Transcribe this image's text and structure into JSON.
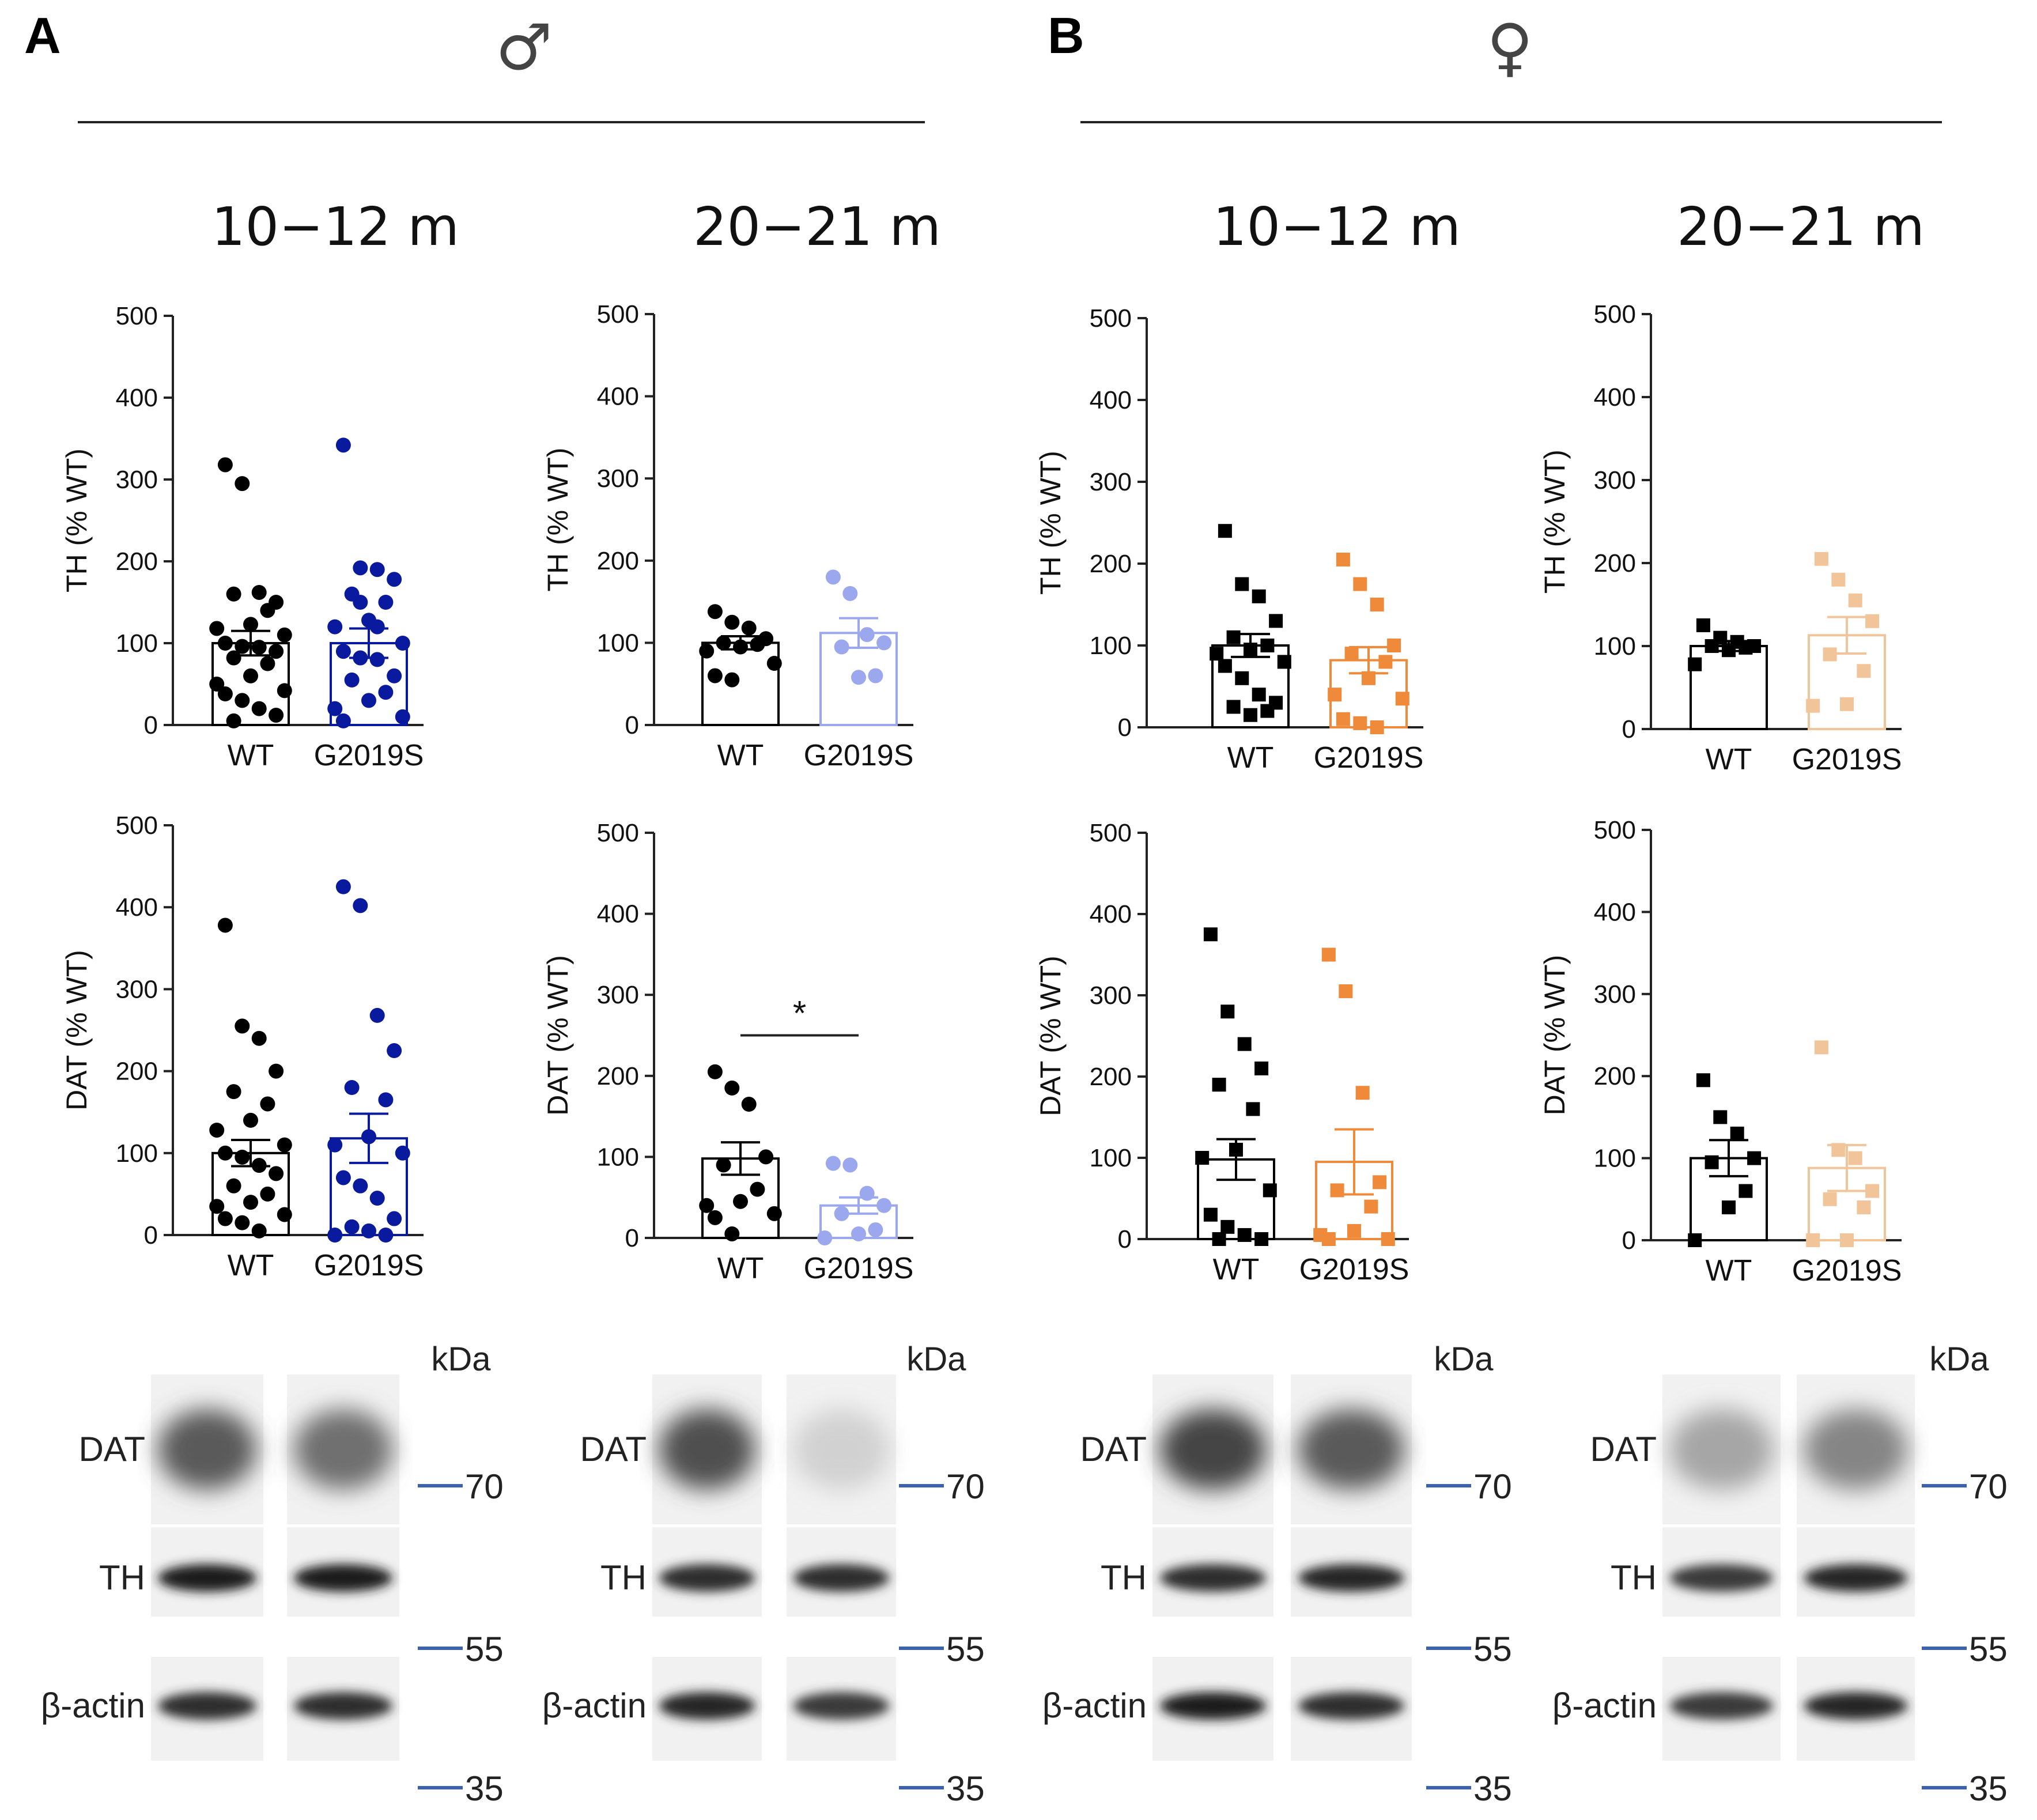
{
  "panels": [
    {
      "letter": "A",
      "sex_symbol": "♂",
      "sex": "male"
    },
    {
      "letter": "B",
      "sex_symbol": "♀",
      "sex": "female"
    }
  ],
  "colors": {
    "wt": "#000000",
    "male_10_12": "#0a1a9e",
    "male_20_21": "#9ca8ee",
    "female_10_12": "#ee8a3a",
    "female_20_21": "#f1c49a",
    "marker": "#3a62b0"
  },
  "chart_data": [
    {
      "id": "male-10-12-th",
      "type": "bar",
      "title": "10−12 m",
      "ylabel": "TH (% WT)",
      "ylim": [
        0,
        500
      ],
      "yticks": [
        0,
        100,
        200,
        300,
        400,
        500
      ],
      "categories": [
        "WT",
        "G2019S"
      ],
      "marker": "circle",
      "series": [
        {
          "name": "WT",
          "mean": 100,
          "sem": 15,
          "color_key": "wt",
          "points": [
            318,
            295,
            162,
            150,
            160,
            140,
            123,
            118,
            110,
            100,
            96,
            95,
            90,
            82,
            75,
            60,
            50,
            42,
            38,
            30,
            20,
            12,
            5
          ]
        },
        {
          "name": "G2019S",
          "mean": 100,
          "sem": 18,
          "color_key": "male_10_12",
          "points": [
            342,
            192,
            190,
            178,
            160,
            150,
            128,
            120,
            100,
            90,
            82,
            80,
            60,
            55,
            40,
            30,
            20,
            10,
            5,
            150,
            120
          ]
        }
      ]
    },
    {
      "id": "male-20-21-th",
      "type": "bar",
      "title": "20−21 m",
      "ylabel": "TH (% WT)",
      "ylim": [
        0,
        500
      ],
      "yticks": [
        0,
        100,
        200,
        300,
        400,
        500
      ],
      "categories": [
        "WT",
        "G2019S"
      ],
      "marker": "circle",
      "series": [
        {
          "name": "WT",
          "mean": 100,
          "sem": 8,
          "color_key": "wt",
          "points": [
            138,
            125,
            118,
            105,
            100,
            98,
            95,
            90,
            75,
            60,
            55
          ]
        },
        {
          "name": "G2019S",
          "mean": 112,
          "sem": 18,
          "color_key": "male_20_21",
          "points": [
            180,
            160,
            110,
            100,
            95,
            60,
            58
          ]
        }
      ]
    },
    {
      "id": "female-10-12-th",
      "type": "bar",
      "title": "10−12 m",
      "ylabel": "TH (% WT)",
      "ylim": [
        0,
        500
      ],
      "yticks": [
        0,
        100,
        200,
        300,
        400,
        500
      ],
      "categories": [
        "WT",
        "G2019S"
      ],
      "marker": "square",
      "series": [
        {
          "name": "WT",
          "mean": 100,
          "sem": 14,
          "color_key": "wt",
          "points": [
            240,
            175,
            160,
            130,
            110,
            100,
            95,
            90,
            80,
            75,
            60,
            40,
            30,
            25,
            20,
            15
          ]
        },
        {
          "name": "G2019S",
          "mean": 82,
          "sem": 16,
          "color_key": "female_10_12",
          "points": [
            205,
            175,
            150,
            100,
            90,
            80,
            60,
            40,
            35,
            10,
            5,
            0
          ]
        }
      ]
    },
    {
      "id": "female-20-21-th",
      "type": "bar",
      "title": "20−21 m",
      "ylabel": "TH (% WT)",
      "ylim": [
        0,
        500
      ],
      "yticks": [
        0,
        100,
        200,
        300,
        400,
        500
      ],
      "categories": [
        "WT",
        "G2019S"
      ],
      "marker": "square",
      "series": [
        {
          "name": "WT",
          "mean": 100,
          "sem": 6,
          "color_key": "wt",
          "points": [
            125,
            110,
            105,
            100,
            100,
            98,
            95,
            78
          ]
        },
        {
          "name": "G2019S",
          "mean": 113,
          "sem": 22,
          "color_key": "female_20_21",
          "points": [
            205,
            180,
            155,
            130,
            90,
            70,
            30,
            28
          ]
        }
      ]
    },
    {
      "id": "male-10-12-dat",
      "type": "bar",
      "ylabel": "DAT (% WT)",
      "ylim": [
        0,
        500
      ],
      "yticks": [
        0,
        100,
        200,
        300,
        400,
        500
      ],
      "categories": [
        "WT",
        "G2019S"
      ],
      "marker": "circle",
      "series": [
        {
          "name": "WT",
          "mean": 100,
          "sem": 16,
          "color_key": "wt",
          "points": [
            378,
            255,
            240,
            200,
            175,
            160,
            140,
            128,
            110,
            100,
            95,
            85,
            75,
            60,
            50,
            40,
            35,
            25,
            20,
            15,
            5
          ]
        },
        {
          "name": "G2019S",
          "mean": 118,
          "sem": 30,
          "color_key": "male_10_12",
          "points": [
            425,
            402,
            268,
            225,
            180,
            165,
            120,
            110,
            100,
            70,
            60,
            45,
            20,
            10,
            0,
            5,
            0
          ]
        }
      ]
    },
    {
      "id": "male-20-21-dat",
      "type": "bar",
      "ylabel": "DAT (% WT)",
      "ylim": [
        0,
        500
      ],
      "yticks": [
        0,
        100,
        200,
        300,
        400,
        500
      ],
      "categories": [
        "WT",
        "G2019S"
      ],
      "marker": "circle",
      "significance": "*",
      "series": [
        {
          "name": "WT",
          "mean": 98,
          "sem": 20,
          "color_key": "wt",
          "points": [
            205,
            185,
            165,
            100,
            90,
            60,
            45,
            40,
            30,
            25,
            5
          ]
        },
        {
          "name": "G2019S",
          "mean": 40,
          "sem": 10,
          "color_key": "male_20_21",
          "points": [
            92,
            90,
            55,
            40,
            30,
            10,
            5,
            0
          ]
        }
      ]
    },
    {
      "id": "female-10-12-dat",
      "type": "bar",
      "ylabel": "DAT (% WT)",
      "ylim": [
        0,
        500
      ],
      "yticks": [
        0,
        100,
        200,
        300,
        400,
        500
      ],
      "categories": [
        "WT",
        "G2019S"
      ],
      "marker": "square",
      "series": [
        {
          "name": "WT",
          "mean": 98,
          "sem": 25,
          "color_key": "wt",
          "points": [
            375,
            280,
            240,
            210,
            190,
            160,
            110,
            100,
            60,
            30,
            15,
            5,
            0,
            0
          ]
        },
        {
          "name": "G2019S",
          "mean": 95,
          "sem": 40,
          "color_key": "female_10_12",
          "points": [
            350,
            305,
            180,
            70,
            60,
            40,
            10,
            5,
            0,
            0
          ]
        }
      ]
    },
    {
      "id": "female-20-21-dat",
      "type": "bar",
      "ylabel": "DAT (% WT)",
      "ylim": [
        0,
        500
      ],
      "yticks": [
        0,
        100,
        200,
        300,
        400,
        500
      ],
      "categories": [
        "WT",
        "G2019S"
      ],
      "marker": "square",
      "series": [
        {
          "name": "WT",
          "mean": 100,
          "sem": 22,
          "color_key": "wt",
          "points": [
            195,
            150,
            130,
            100,
            95,
            60,
            40,
            0
          ]
        },
        {
          "name": "G2019S",
          "mean": 88,
          "sem": 28,
          "color_key": "female_20_21",
          "points": [
            235,
            110,
            100,
            60,
            50,
            40,
            0,
            0
          ]
        }
      ]
    }
  ],
  "blots": {
    "unit_label": "kDa",
    "rows": [
      "DAT",
      "TH",
      "β-actin"
    ],
    "markers": [
      "70",
      "55",
      "35"
    ],
    "groups": [
      {
        "id": "male-10-12",
        "dat": [
          0.65,
          0.55
        ],
        "th": [
          0.95,
          0.95
        ],
        "actin": [
          0.85,
          0.85
        ]
      },
      {
        "id": "male-20-21",
        "dat": [
          0.7,
          0.1
        ],
        "th": [
          0.85,
          0.85
        ],
        "actin": [
          0.9,
          0.8
        ]
      },
      {
        "id": "female-10-12",
        "dat": [
          0.75,
          0.65
        ],
        "th": [
          0.85,
          0.9
        ],
        "actin": [
          0.95,
          0.85
        ]
      },
      {
        "id": "female-20-21",
        "dat": [
          0.3,
          0.45
        ],
        "th": [
          0.8,
          0.9
        ],
        "actin": [
          0.8,
          0.9
        ]
      }
    ]
  }
}
